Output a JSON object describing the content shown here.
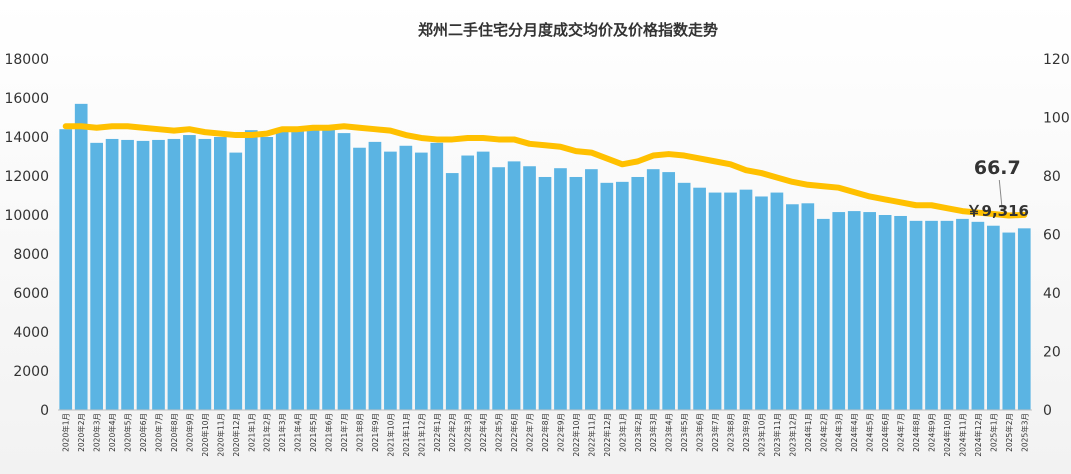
{
  "chart_data": {
    "type": "bar",
    "title": "郑州二手住宅分月度成交均价及价格指数走势",
    "categories": [
      "2020年1月",
      "2020年2月",
      "2020年3月",
      "2020年4月",
      "2020年5月",
      "2020年6月",
      "2020年7月",
      "2020年8月",
      "2020年9月",
      "2020年10月",
      "2020年11月",
      "2020年12月",
      "2021年1月",
      "2021年2月",
      "2021年3月",
      "2021年4月",
      "2021年5月",
      "2021年6月",
      "2021年7月",
      "2021年8月",
      "2021年9月",
      "2021年10月",
      "2021年11月",
      "2021年12月",
      "2022年1月",
      "2022年2月",
      "2022年3月",
      "2022年4月",
      "2022年5月",
      "2022年6月",
      "2022年7月",
      "2022年8月",
      "2022年9月",
      "2022年10月",
      "2022年11月",
      "2022年12月",
      "2023年1月",
      "2023年2月",
      "2023年3月",
      "2023年4月",
      "2023年5月",
      "2023年6月",
      "2023年7月",
      "2023年8月",
      "2023年9月",
      "2023年10月",
      "2023年11月",
      "2023年12月",
      "2024年1月",
      "2024年2月",
      "2024年3月",
      "2024年4月",
      "2024年5月",
      "2024年6月",
      "2024年7月",
      "2024年8月",
      "2024年9月",
      "2024年10月",
      "2024年11月",
      "2024年12月",
      "2025年1月",
      "2025年2月",
      "2025年3月"
    ],
    "series": [
      {
        "type": "bar",
        "axis": "left",
        "color": "#5BB4E3",
        "values": [
          14400,
          15700,
          13700,
          13900,
          13850,
          13800,
          13850,
          13900,
          14100,
          13900,
          14000,
          13200,
          14350,
          14000,
          14300,
          14400,
          14500,
          14450,
          14200,
          13450,
          13750,
          13250,
          13550,
          13200,
          13700,
          12150,
          13050,
          13250,
          12450,
          12750,
          12500,
          11950,
          12400,
          11950,
          12350,
          11650,
          11700,
          11950,
          12350,
          12200,
          11650,
          11400,
          11150,
          11150,
          11300,
          10950,
          11150,
          10550,
          10600,
          9800,
          10150,
          10200,
          10150,
          10000,
          9950,
          9700,
          9700,
          9700,
          9800,
          9650,
          9450,
          9100,
          9316
        ]
      },
      {
        "type": "line",
        "axis": "right",
        "color": "#FFC000",
        "values": [
          97,
          97,
          96.5,
          97,
          97,
          96.5,
          96,
          95.5,
          96,
          95,
          94.5,
          94,
          94,
          94.5,
          96,
          96,
          96.5,
          96.5,
          97,
          96.5,
          96,
          95.5,
          94,
          93,
          92.5,
          92.5,
          93,
          93,
          92.5,
          92.5,
          91,
          90.5,
          90,
          88.5,
          88,
          86,
          84,
          85,
          87,
          87.5,
          87,
          86,
          85,
          84,
          82,
          81,
          79.5,
          78,
          77,
          76.5,
          76,
          74.5,
          73,
          72,
          71,
          70,
          70,
          69,
          68,
          67.5,
          67,
          66.5,
          66.7
        ]
      }
    ],
    "y_left_ticks": [
      "0",
      "2000",
      "4000",
      "6000",
      "8000",
      "10000",
      "12000",
      "14000",
      "16000",
      "18000"
    ],
    "y_right_ticks": [
      "0",
      "20",
      "40",
      "60",
      "80",
      "100",
      "120"
    ],
    "ylim_left": [
      0,
      18000
    ],
    "ylim_right": [
      0,
      120
    ],
    "grid": false,
    "background": "#F2F2F2",
    "annotations": {
      "index_label": "66.7",
      "price_label": "￥9,316"
    }
  }
}
